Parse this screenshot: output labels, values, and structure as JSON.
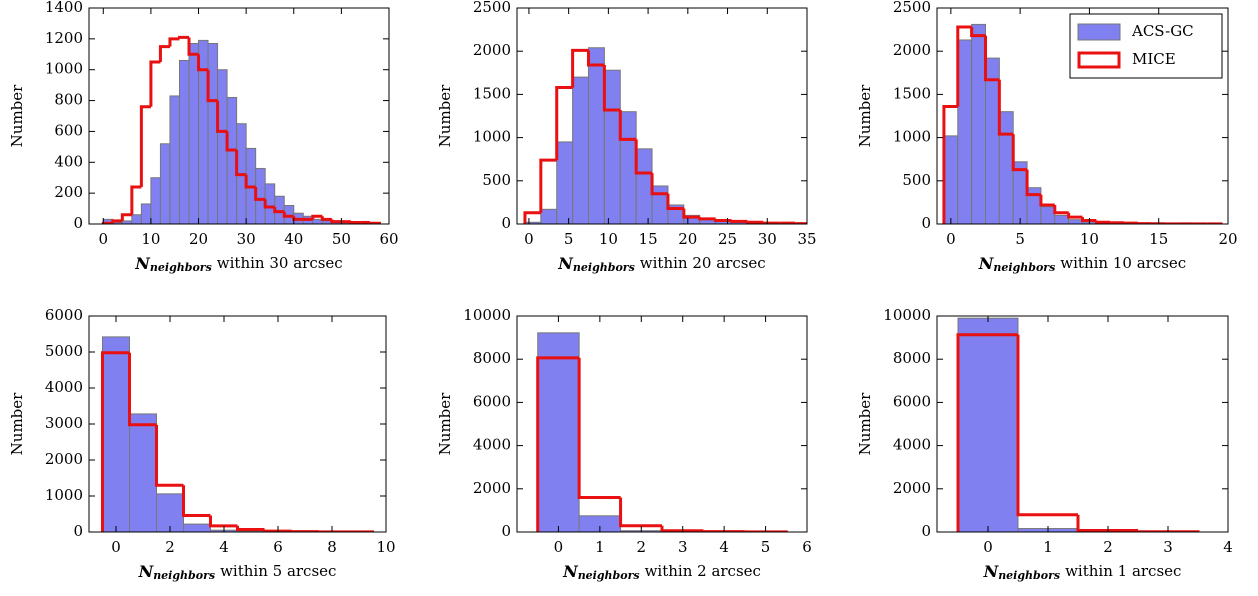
{
  "chart_data": [
    {
      "type": "histogram",
      "ylabel": "Number",
      "xlabel": {
        "symbol": "N",
        "subscript": "neighbors",
        "text": "within 30 arcsec"
      },
      "bins": [
        0,
        2,
        4,
        6,
        8,
        10,
        12,
        14,
        16,
        18,
        20,
        22,
        24,
        26,
        28,
        30,
        32,
        34,
        36,
        38,
        40,
        42,
        44,
        46,
        48,
        50,
        52,
        54,
        56,
        58
      ],
      "series": [
        {
          "color": "#8080f0",
          "values": [
            30,
            10,
            20,
            60,
            130,
            300,
            520,
            830,
            1060,
            1170,
            1190,
            1170,
            1000,
            820,
            650,
            490,
            360,
            260,
            180,
            120,
            70,
            50,
            30,
            20,
            10,
            8,
            5,
            3,
            2
          ]
        },
        {
          "color": "#e81010",
          "values": [
            5,
            20,
            60,
            240,
            760,
            1050,
            1150,
            1200,
            1210,
            1100,
            1000,
            800,
            600,
            480,
            320,
            240,
            160,
            110,
            80,
            50,
            30,
            30,
            50,
            30,
            15,
            15,
            10,
            10,
            5
          ]
        }
      ],
      "xlim": [
        -3,
        60
      ],
      "ylim": [
        0,
        1400
      ],
      "xticks": [
        0,
        10,
        20,
        30,
        40,
        50,
        60
      ],
      "yticks": [
        0,
        200,
        400,
        600,
        800,
        1000,
        1200,
        1400
      ]
    },
    {
      "type": "histogram",
      "ylabel": "Number",
      "xlabel": {
        "symbol": "N",
        "subscript": "neighbors",
        "text": "within 20 arcsec"
      },
      "bins": [
        -0.5,
        1.5,
        3.5,
        5.5,
        7.5,
        9.5,
        11.5,
        13.5,
        15.5,
        17.5,
        19.5,
        21.5,
        23.5,
        25.5,
        27.5,
        29.5,
        31.5,
        33.5,
        35.5
      ],
      "series": [
        {
          "color": "#8080f0",
          "values": [
            20,
            170,
            950,
            1700,
            2040,
            1780,
            1300,
            870,
            440,
            220,
            100,
            50,
            30,
            20,
            10,
            5,
            3,
            2
          ]
        },
        {
          "color": "#e81010",
          "values": [
            130,
            740,
            1580,
            2010,
            1840,
            1320,
            980,
            590,
            350,
            180,
            80,
            60,
            40,
            30,
            20,
            10,
            10,
            5
          ]
        }
      ],
      "xlim": [
        -1.5,
        35
      ],
      "ylim": [
        0,
        2500
      ],
      "xticks": [
        0,
        5,
        10,
        15,
        20,
        25,
        30,
        35
      ],
      "yticks": [
        0,
        500,
        1000,
        1500,
        2000,
        2500
      ]
    },
    {
      "type": "histogram",
      "ylabel": "Number",
      "legend": "upper right",
      "xlabel": {
        "symbol": "N",
        "subscript": "neighbors",
        "text": "within 10 arcsec"
      },
      "bins": [
        -0.5,
        0.5,
        1.5,
        2.5,
        3.5,
        4.5,
        5.5,
        6.5,
        7.5,
        8.5,
        9.5,
        10.5,
        11.5,
        12.5,
        13.5,
        14.5,
        15.5,
        16.5,
        17.5,
        18.5,
        19.5
      ],
      "series": [
        {
          "name": "ACS-GC",
          "color": "#8080f0",
          "values": [
            1020,
            2130,
            2310,
            1920,
            1300,
            720,
            420,
            200,
            100,
            50,
            25,
            15,
            10,
            5,
            3,
            2,
            1,
            1,
            1,
            1
          ]
        },
        {
          "name": "MICE",
          "color": "#e81010",
          "values": [
            1360,
            2280,
            2180,
            1670,
            1040,
            630,
            340,
            220,
            130,
            80,
            40,
            20,
            15,
            10,
            5,
            3,
            2,
            2,
            1,
            1
          ]
        }
      ],
      "xlim": [
        -1,
        20
      ],
      "ylim": [
        0,
        2500
      ],
      "xticks": [
        0,
        5,
        10,
        15,
        20
      ],
      "yticks": [
        0,
        500,
        1000,
        1500,
        2000,
        2500
      ]
    },
    {
      "type": "histogram",
      "ylabel": "Number",
      "xlabel": {
        "symbol": "N",
        "subscript": "neighbors",
        "text": "within 5 arcsec"
      },
      "bins": [
        -0.5,
        0.5,
        1.5,
        2.5,
        3.5,
        4.5,
        5.5,
        6.5,
        7.5,
        8.5,
        9.5
      ],
      "series": [
        {
          "color": "#8080f0",
          "values": [
            5420,
            3280,
            1060,
            220,
            50,
            15,
            5,
            2,
            1,
            1
          ]
        },
        {
          "color": "#e81010",
          "values": [
            4980,
            2980,
            1300,
            460,
            170,
            70,
            25,
            10,
            5,
            2
          ]
        }
      ],
      "xlim": [
        -1,
        10
      ],
      "ylim": [
        0,
        6000
      ],
      "xticks": [
        0,
        2,
        4,
        6,
        8,
        10
      ],
      "yticks": [
        0,
        1000,
        2000,
        3000,
        4000,
        5000,
        6000
      ]
    },
    {
      "type": "histogram",
      "ylabel": "Number",
      "xlabel": {
        "symbol": "N",
        "subscript": "neighbors",
        "text": "within 2 arcsec"
      },
      "bins": [
        -0.5,
        0.5,
        1.5,
        2.5,
        3.5,
        4.5,
        5.5
      ],
      "series": [
        {
          "color": "#8080f0",
          "values": [
            9220,
            750,
            60,
            10,
            3,
            1
          ]
        },
        {
          "color": "#e81010",
          "values": [
            8060,
            1600,
            290,
            60,
            15,
            5
          ]
        }
      ],
      "xlim": [
        -1,
        6
      ],
      "ylim": [
        0,
        10000
      ],
      "xticks": [
        0,
        1,
        2,
        3,
        4,
        5,
        6
      ],
      "yticks": [
        0,
        2000,
        4000,
        6000,
        8000,
        10000
      ]
    },
    {
      "type": "histogram",
      "ylabel": "Number",
      "xlabel": {
        "symbol": "N",
        "subscript": "neighbors",
        "text": "within 1 arcsec"
      },
      "bins": [
        -0.5,
        0.5,
        1.5,
        2.5,
        3.5
      ],
      "series": [
        {
          "color": "#8080f0",
          "values": [
            9900,
            160,
            10,
            2
          ]
        },
        {
          "color": "#e81010",
          "values": [
            9130,
            800,
            70,
            10
          ]
        }
      ],
      "xlim": [
        -0.85,
        4
      ],
      "ylim": [
        0,
        10000
      ],
      "xticks": [
        0,
        1,
        2,
        3,
        4
      ],
      "yticks": [
        0,
        2000,
        4000,
        6000,
        8000,
        10000
      ]
    }
  ]
}
